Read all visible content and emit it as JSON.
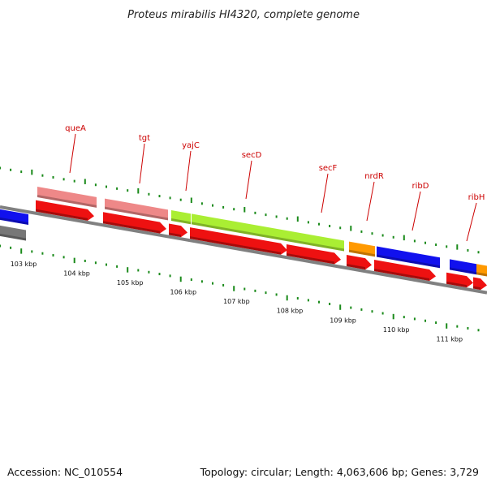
{
  "title": "Proteus mirabilis HI4320, complete genome",
  "footer": {
    "accession": "Accession: NC_010554",
    "stats": "Topology: circular; Length: 4,063,606 bp; Genes: 3,729"
  },
  "colors": {
    "outer_tick": "#1a8a1a",
    "inner_tick": "#1a8a1a",
    "backbone": "#808080",
    "cds": "#ee1111",
    "pink": "#ee8888",
    "lime": "#aaee33",
    "orange": "#ff9900",
    "blue": "#1111ee",
    "grey": "#777777",
    "label": "#cc0000"
  },
  "diagram": {
    "kbp_ticks": [
      {
        "kbp": 103,
        "label": "103 kbp"
      },
      {
        "kbp": 104,
        "label": "104 kbp"
      },
      {
        "kbp": 105,
        "label": "105 kbp"
      },
      {
        "kbp": 106,
        "label": "106 kbp"
      },
      {
        "kbp": 107,
        "label": "107 kbp"
      },
      {
        "kbp": 108,
        "label": "108 kbp"
      },
      {
        "kbp": 109,
        "label": "109 kbp"
      },
      {
        "kbp": 110,
        "label": "110 kbp"
      },
      {
        "kbp": 111,
        "label": "111 kbp"
      }
    ],
    "genes": [
      {
        "name": "queA",
        "start": 103.2,
        "end": 104.35,
        "color": "pink"
      },
      {
        "name": "tgt",
        "start": 104.45,
        "end": 105.6,
        "color": "pink"
      },
      {
        "name": "yajC",
        "start": 105.65,
        "end": 106.0,
        "color": "lime"
      },
      {
        "name": "secD",
        "start": 106.05,
        "end": 108.9,
        "color": "lime"
      },
      {
        "name": "secF",
        "start": 108.9,
        "end": 108.9,
        "color": "lime"
      },
      {
        "name": "nrdR",
        "start": 109.0,
        "end": 109.45,
        "color": "orange"
      },
      {
        "name": "ribD",
        "start": 109.5,
        "end": 110.7,
        "color": "blue"
      },
      {
        "name": "ribH",
        "start": 110.9,
        "end": 111.4,
        "color": "blue"
      }
    ],
    "label_order": [
      "queA",
      "tgt",
      "yajC",
      "secD",
      "secF",
      "nrdR",
      "ribD",
      "ribH"
    ],
    "left_features": [
      {
        "name": "blue-partial",
        "color": "blue"
      },
      {
        "name": "grey-partial",
        "color": "grey"
      }
    ]
  }
}
